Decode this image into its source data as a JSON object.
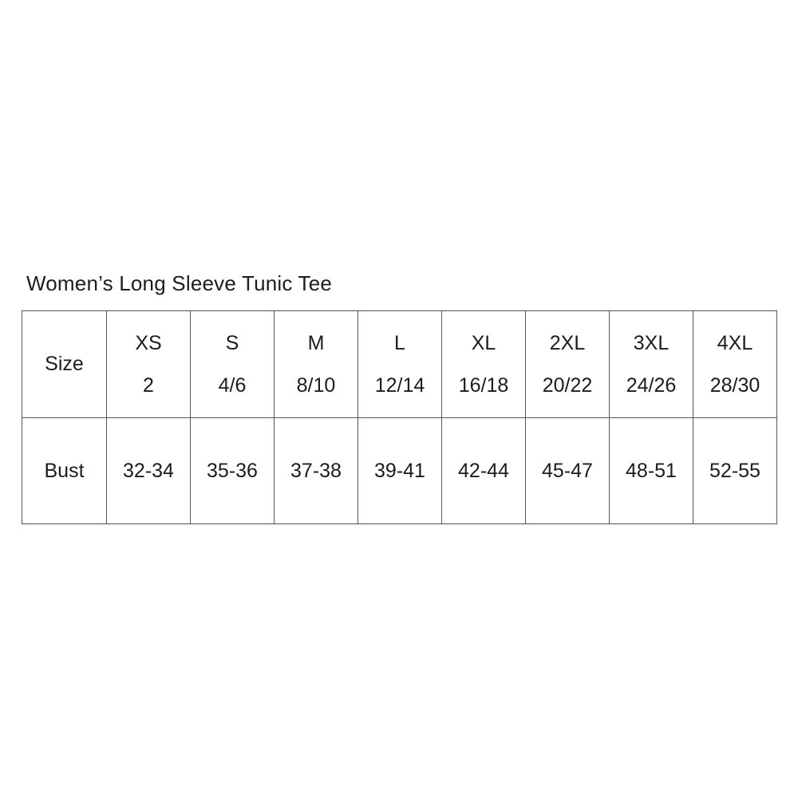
{
  "page": {
    "background_color": "#ffffff",
    "text_color": "#1c1c1c",
    "table_border_color": "#565656"
  },
  "title": "Women’s Long Sleeve Tunic Tee",
  "chart_data": {
    "type": "table",
    "title": "Women’s Long Sleeve Tunic Tee",
    "header_row": {
      "label": "Size",
      "sizes": [
        "XS",
        "S",
        "M",
        "L",
        "XL",
        "2XL",
        "3XL",
        "4XL"
      ],
      "numeric_sizes": [
        "2",
        "4/6",
        "8/10",
        "12/14",
        "16/18",
        "20/22",
        "24/26",
        "28/30"
      ]
    },
    "rows": [
      {
        "label": "Bust",
        "values": [
          "32-34",
          "35-36",
          "37-38",
          "39-41",
          "42-44",
          "45-47",
          "48-51",
          "52-55"
        ]
      }
    ]
  }
}
